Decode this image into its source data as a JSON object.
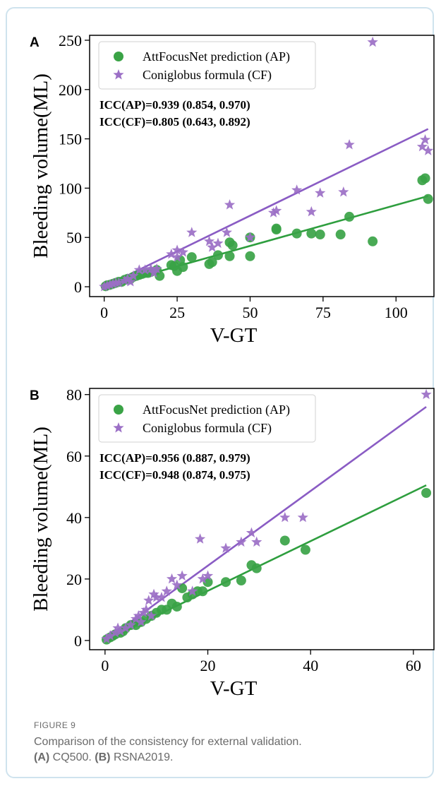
{
  "figure": {
    "label": "FIGURE 9",
    "caption_main": "Comparison of the consistency for external validation.",
    "caption_a_tag": "(A)",
    "caption_a": "CQ500.",
    "caption_b_tag": "(B)",
    "caption_b": "RSNA2019."
  },
  "colors": {
    "ap": "#3aa346",
    "cf": "#9b6fc6",
    "ap_line": "#2e9e3e",
    "cf_line": "#8a5cc4"
  },
  "chart_data": [
    {
      "panel": "A",
      "type": "scatter",
      "xlabel": "V-GT",
      "ylabel": "Bleeding volume(ML)",
      "xlim": [
        -5,
        113
      ],
      "ylim": [
        -10,
        255
      ],
      "xticks": [
        0,
        25,
        50,
        75,
        100
      ],
      "yticks": [
        0,
        50,
        100,
        150,
        200,
        250
      ],
      "legend_position": "top-left",
      "icc": [
        "ICC(AP)=0.939 (0.854,  0.970)",
        "ICC(CF)=0.805 (0.643,  0.892)"
      ],
      "series": [
        {
          "name": "AttFocusNet prediction (AP)",
          "marker": "circle",
          "points": [
            [
              0.5,
              0.5
            ],
            [
              1,
              1.5
            ],
            [
              2,
              2
            ],
            [
              3,
              3
            ],
            [
              4,
              4
            ],
            [
              5,
              5
            ],
            [
              6,
              5
            ],
            [
              7,
              7
            ],
            [
              8,
              8
            ],
            [
              9,
              8
            ],
            [
              10,
              10
            ],
            [
              11,
              11
            ],
            [
              12,
              12
            ],
            [
              13,
              13
            ],
            [
              14,
              14
            ],
            [
              15,
              14
            ],
            [
              16,
              15
            ],
            [
              18,
              17
            ],
            [
              19,
              11
            ],
            [
              23,
              22
            ],
            [
              24,
              21
            ],
            [
              25,
              16
            ],
            [
              26,
              27
            ],
            [
              27,
              20
            ],
            [
              30,
              30
            ],
            [
              36,
              23
            ],
            [
              37,
              25
            ],
            [
              39,
              32
            ],
            [
              43,
              45
            ],
            [
              43,
              31
            ],
            [
              44,
              42
            ],
            [
              50,
              50
            ],
            [
              50,
              31
            ],
            [
              59,
              59
            ],
            [
              59,
              58
            ],
            [
              66,
              54
            ],
            [
              71,
              54
            ],
            [
              74,
              53
            ],
            [
              81,
              53
            ],
            [
              84,
              71
            ],
            [
              92,
              46
            ],
            [
              109,
              108
            ],
            [
              110,
              110
            ],
            [
              111,
              89
            ]
          ]
        },
        {
          "name": "Coniglobus formula (CF)",
          "marker": "star",
          "points": [
            [
              0,
              0
            ],
            [
              1,
              1
            ],
            [
              2,
              2
            ],
            [
              3,
              3
            ],
            [
              4,
              4
            ],
            [
              5,
              4
            ],
            [
              7,
              6
            ],
            [
              8,
              8
            ],
            [
              9,
              5
            ],
            [
              10,
              11
            ],
            [
              12,
              17
            ],
            [
              14,
              17
            ],
            [
              16,
              18
            ],
            [
              17,
              14
            ],
            [
              18,
              18
            ],
            [
              23,
              33
            ],
            [
              25,
              37
            ],
            [
              25,
              30
            ],
            [
              27,
              35
            ],
            [
              30,
              55
            ],
            [
              36,
              46
            ],
            [
              37,
              40
            ],
            [
              39,
              44
            ],
            [
              42,
              55
            ],
            [
              43,
              83
            ],
            [
              50,
              50
            ],
            [
              58,
              75
            ],
            [
              59,
              77
            ],
            [
              66,
              98
            ],
            [
              71,
              76
            ],
            [
              74,
              95
            ],
            [
              82,
              96
            ],
            [
              84,
              144
            ],
            [
              92,
              248
            ],
            [
              109,
              142
            ],
            [
              110,
              149
            ],
            [
              111,
              138
            ]
          ]
        }
      ],
      "fit_lines": [
        {
          "series": "AttFocusNet prediction (AP)",
          "x": [
            0,
            111
          ],
          "y": [
            0,
            92
          ]
        },
        {
          "series": "Coniglobus formula (CF)",
          "x": [
            0,
            111
          ],
          "y": [
            0,
            160
          ]
        }
      ]
    },
    {
      "panel": "B",
      "type": "scatter",
      "xlabel": "V-GT",
      "ylabel": "Bleeding volume(ML)",
      "xlim": [
        -3,
        64
      ],
      "ylim": [
        -3,
        82
      ],
      "xticks": [
        0,
        20,
        40,
        60
      ],
      "yticks": [
        0,
        20,
        40,
        60,
        80
      ],
      "legend_position": "top-left",
      "icc": [
        "ICC(AP)=0.956 (0.887,  0.979)",
        "ICC(CF)=0.948 (0.874,  0.975)"
      ],
      "series": [
        {
          "name": "AttFocusNet prediction (AP)",
          "marker": "circle",
          "points": [
            [
              0.3,
              0.3
            ],
            [
              1,
              1
            ],
            [
              1.5,
              1.5
            ],
            [
              2,
              2
            ],
            [
              3,
              2.5
            ],
            [
              3.5,
              3
            ],
            [
              4,
              4
            ],
            [
              5,
              5
            ],
            [
              6,
              5
            ],
            [
              6.5,
              6
            ],
            [
              7,
              6
            ],
            [
              8,
              7
            ],
            [
              9,
              8
            ],
            [
              10,
              9
            ],
            [
              11,
              10
            ],
            [
              12,
              10
            ],
            [
              13,
              12
            ],
            [
              14,
              11
            ],
            [
              15,
              17
            ],
            [
              16,
              14
            ],
            [
              17,
              15
            ],
            [
              18,
              16
            ],
            [
              19,
              16
            ],
            [
              20,
              19
            ],
            [
              23.5,
              19
            ],
            [
              26.5,
              19.5
            ],
            [
              28.5,
              24.5
            ],
            [
              29.5,
              23.5
            ],
            [
              35,
              32.5
            ],
            [
              39,
              29.5
            ],
            [
              62.5,
              48
            ]
          ]
        },
        {
          "name": "Coniglobus formula (CF)",
          "marker": "star",
          "points": [
            [
              0.3,
              0.5
            ],
            [
              1,
              1.5
            ],
            [
              2,
              2.5
            ],
            [
              2.5,
              4
            ],
            [
              3,
              3
            ],
            [
              4,
              4
            ],
            [
              5,
              5
            ],
            [
              6,
              7
            ],
            [
              6.5,
              8
            ],
            [
              7,
              6
            ],
            [
              7.5,
              9
            ],
            [
              8,
              10
            ],
            [
              8.5,
              13
            ],
            [
              9,
              8
            ],
            [
              9.5,
              15
            ],
            [
              10,
              14
            ],
            [
              11,
              14
            ],
            [
              12,
              16
            ],
            [
              13,
              20
            ],
            [
              14,
              18
            ],
            [
              15,
              21
            ],
            [
              17,
              16
            ],
            [
              18.5,
              33
            ],
            [
              19,
              20
            ],
            [
              20,
              21
            ],
            [
              23.5,
              30
            ],
            [
              26.5,
              32
            ],
            [
              28.5,
              35
            ],
            [
              29.5,
              32
            ],
            [
              35,
              40
            ],
            [
              38.5,
              40
            ],
            [
              62.5,
              80
            ]
          ]
        }
      ],
      "fit_lines": [
        {
          "series": "AttFocusNet prediction (AP)",
          "x": [
            0,
            62.5
          ],
          "y": [
            0,
            50.5
          ]
        },
        {
          "series": "Coniglobus formula (CF)",
          "x": [
            0,
            62.5
          ],
          "y": [
            0,
            76
          ]
        }
      ]
    }
  ]
}
